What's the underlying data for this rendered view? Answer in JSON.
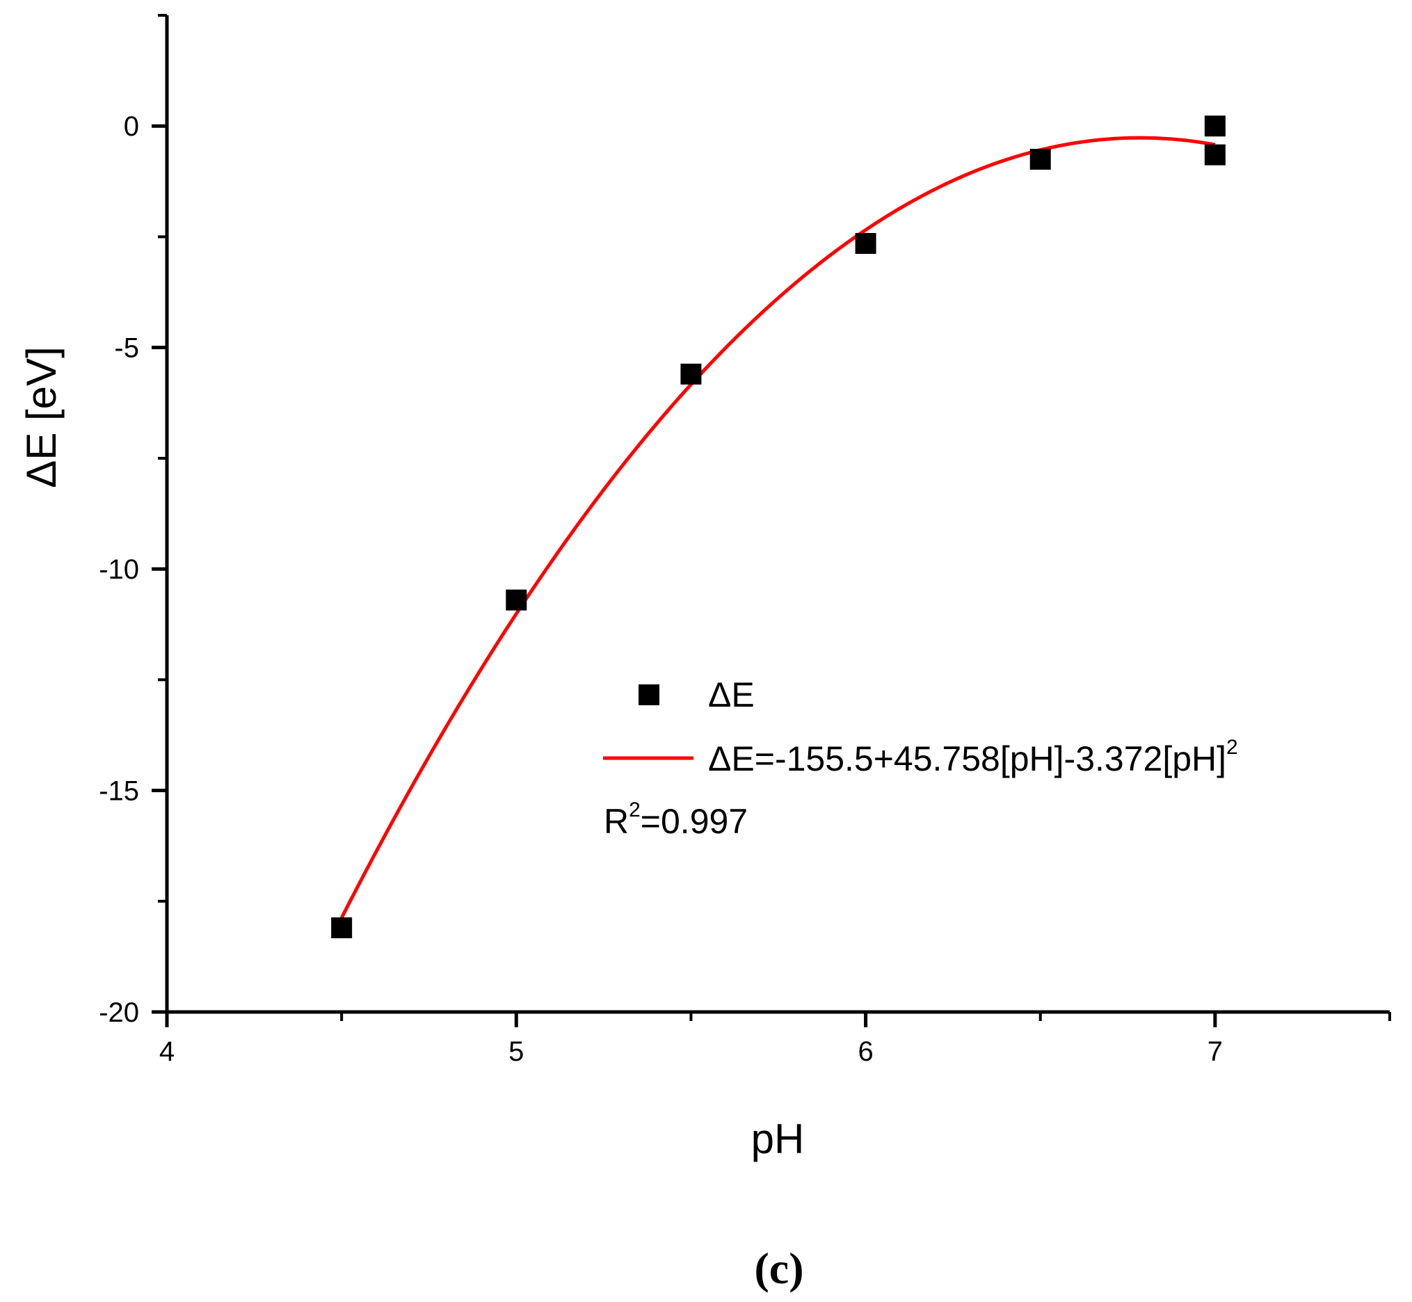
{
  "chart_data": {
    "type": "scatter",
    "xlabel": "pH",
    "ylabel": "ΔE [eV]",
    "xlim": [
      4,
      7.5
    ],
    "ylim": [
      -20,
      2.5
    ],
    "x_ticks": [
      4,
      5,
      6,
      7
    ],
    "y_ticks": [
      0,
      -5,
      -10,
      -15,
      -20
    ],
    "grid": false,
    "legend_position": "center-right",
    "series": [
      {
        "name": "ΔE",
        "kind": "scatter",
        "marker": "square",
        "color": "#000000",
        "x": [
          4.5,
          5.0,
          5.5,
          6.0,
          6.5,
          7.0,
          7.0
        ],
        "y": [
          -18.1,
          -10.7,
          -5.6,
          -2.65,
          -0.75,
          -0.65,
          0.0
        ]
      },
      {
        "name_prefix": "ΔE=-155.5+45.758[pH]-3.372[pH]",
        "name_sup": "2",
        "kind": "fit",
        "color": "#ff0000",
        "coefficients": [
          -155.5,
          45.758,
          -3.372
        ],
        "x_range": [
          4.5,
          7.0
        ]
      }
    ],
    "annotation": {
      "base": "R",
      "sup": "2",
      "rest": "=0.997"
    },
    "panel_label": "(c)"
  }
}
